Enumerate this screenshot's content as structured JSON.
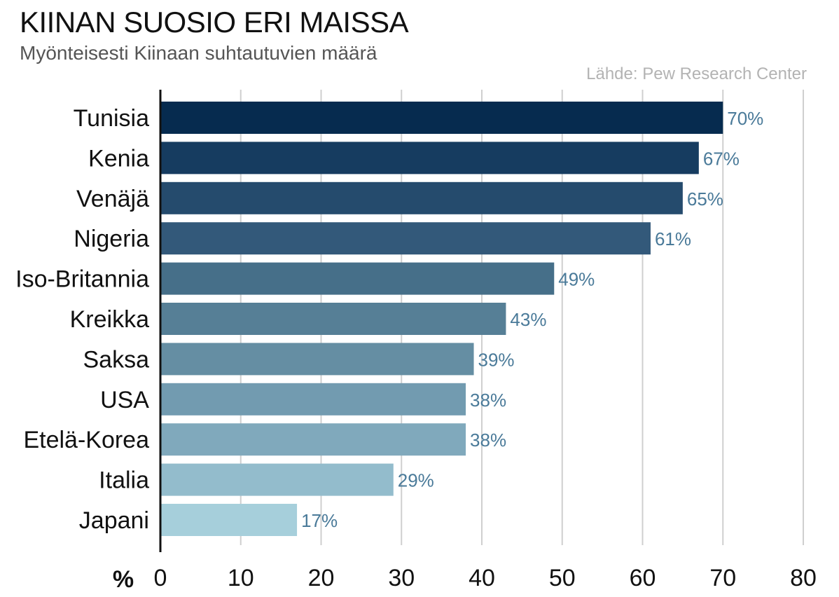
{
  "header": {
    "title": "KIINAN SUOSIO ERI MAISSA",
    "subtitle": "Myönteisesti Kiinaan suhtautuvien määrä",
    "source": "Lähde: Pew Research Center"
  },
  "chart_data": {
    "type": "bar",
    "orientation": "horizontal",
    "title": "KIINAN SUOSIO ERI MAISSA",
    "subtitle": "Myönteisesti Kiinaan suhtautuvien määrä",
    "source": "Lähde: Pew Research Center",
    "xlabel": "%",
    "ylabel": "",
    "xlim": [
      0,
      80
    ],
    "xticks": [
      0,
      10,
      20,
      30,
      40,
      50,
      60,
      70,
      80
    ],
    "grid": true,
    "categories": [
      "Tunisia",
      "Kenia",
      "Venäjä",
      "Nigeria",
      "Iso-Britannia",
      "Kreikka",
      "Saksa",
      "USA",
      "Etelä-Korea",
      "Italia",
      "Japani"
    ],
    "values": [
      70,
      67,
      65,
      61,
      49,
      43,
      39,
      38,
      38,
      29,
      17
    ],
    "value_labels": [
      "70%",
      "67%",
      "65%",
      "61%",
      "49%",
      "43%",
      "39%",
      "38%",
      "38%",
      "29%",
      "17%"
    ],
    "colors": [
      "#062b4f",
      "#163c60",
      "#254b6d",
      "#33597a",
      "#466f89",
      "#567f96",
      "#658ea3",
      "#729bb0",
      "#80a9bc",
      "#93bccc",
      "#a6cfdb"
    ],
    "label_color": "#4a7a99"
  }
}
